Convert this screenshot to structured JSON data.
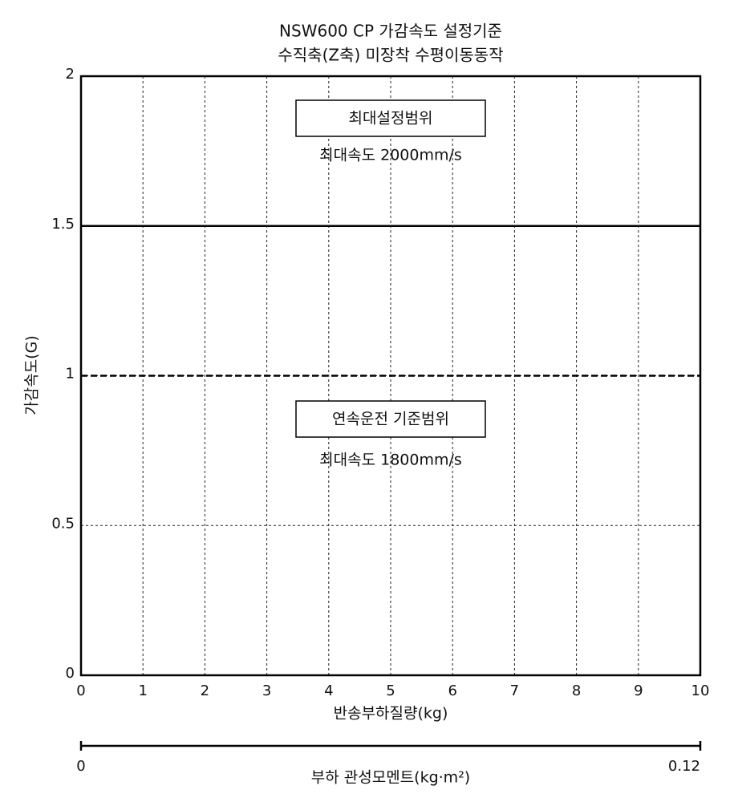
{
  "chart_data": {
    "type": "line",
    "title": [
      "NSW600 CP 가감속도 설정기준",
      "수직축(Z축) 미장착 수평이동동작"
    ],
    "xlabel": "반송부하질량(kg)",
    "ylabel": "가감속도(G)",
    "x": [
      0,
      10
    ],
    "series": [
      {
        "color": "#000000",
        "dash": false,
        "values": [
          1.5,
          1.5
        ]
      },
      {
        "color": "#000000",
        "dash": true,
        "values": [
          1,
          1
        ]
      }
    ],
    "xlim": [
      0,
      10
    ],
    "xticks": [
      0,
      1,
      2,
      3,
      4,
      5,
      6,
      7,
      8,
      9,
      10
    ],
    "ylim": [
      0,
      2
    ],
    "yticks": [
      0,
      0.5,
      1,
      1.5,
      2
    ],
    "grid": true,
    "annotations": [
      {
        "text": "최대설정범위",
        "boxed": true
      },
      {
        "text": "최대속도 2000mm/s",
        "boxed": false
      },
      {
        "text": "연속운전 기준범위",
        "boxed": true
      },
      {
        "text": "최대속도 1800mm/s",
        "boxed": false
      }
    ],
    "x2label": "부하 관성모멘트(kg·m²)",
    "x2lim": [
      0,
      0.12
    ],
    "x2ticks": [
      0,
      0.12
    ]
  }
}
